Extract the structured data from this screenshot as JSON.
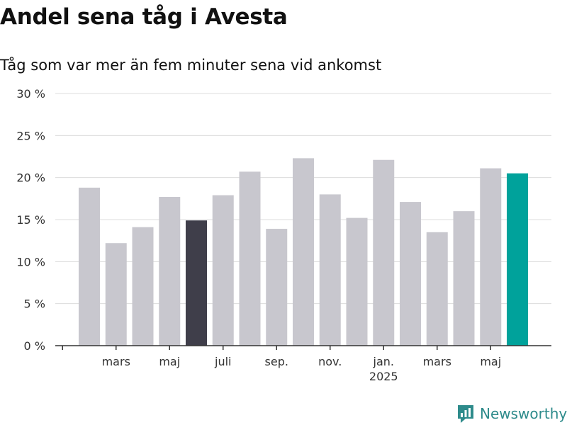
{
  "title": "Andel sena tåg i Avesta",
  "subtitle": "Tåg som var mer än fem minuter sena vid ankomst",
  "brand": {
    "name": "Newsworthy",
    "icon": "newsworthy-logo-icon"
  },
  "colors": {
    "bar": "#c8c7ce",
    "highlight_dark": "#3f3e4a",
    "highlight_accent": "#00a29b",
    "brand": "#2e8b8b"
  },
  "chart_data": {
    "type": "bar",
    "title": "Andel sena tåg i Avesta",
    "subtitle": "Tåg som var mer än fem minuter sena vid ankomst",
    "xlabel": "",
    "ylabel": "",
    "ylim": [
      0,
      30
    ],
    "yticks": [
      "0 %",
      "5 %",
      "10 %",
      "15 %",
      "20 %",
      "25 %",
      "30 %"
    ],
    "grid": true,
    "x_tick_labels": [
      {
        "index": 1,
        "label": "mars"
      },
      {
        "index": 3,
        "label": "maj"
      },
      {
        "index": 5,
        "label": "juli"
      },
      {
        "index": 7,
        "label": "sep."
      },
      {
        "index": 9,
        "label": "nov."
      },
      {
        "index": 11,
        "label": "jan.",
        "sublabel": "2025"
      },
      {
        "index": 13,
        "label": "mars"
      },
      {
        "index": 15,
        "label": "maj"
      }
    ],
    "values": [
      18.8,
      12.2,
      14.1,
      17.7,
      14.9,
      17.9,
      20.7,
      13.9,
      22.3,
      18.0,
      15.2,
      22.1,
      17.1,
      13.5,
      16.0,
      21.1,
      20.5
    ],
    "highlights": [
      {
        "index": 4,
        "color": "#3f3e4a"
      },
      {
        "index": 16,
        "color": "#00a29b"
      }
    ]
  }
}
